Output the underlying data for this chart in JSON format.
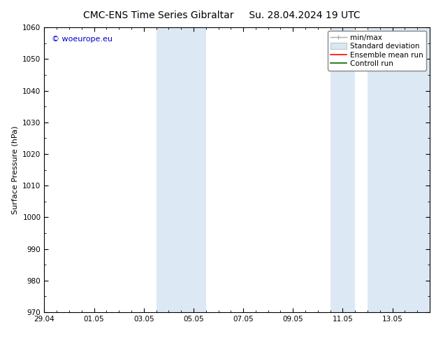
{
  "title_left": "CMC-ENS Time Series Gibraltar",
  "title_right": "Su. 28.04.2024 19 UTC",
  "ylabel": "Surface Pressure (hPa)",
  "ylim": [
    970,
    1060
  ],
  "yticks": [
    970,
    980,
    990,
    1000,
    1010,
    1020,
    1030,
    1040,
    1050,
    1060
  ],
  "xtick_labels": [
    "29.04",
    "01.05",
    "03.05",
    "05.05",
    "07.05",
    "09.05",
    "11.05",
    "13.05"
  ],
  "xtick_positions": [
    0,
    2,
    4,
    6,
    8,
    10,
    12,
    14
  ],
  "xlim": [
    0,
    15.5
  ],
  "shaded_regions": [
    {
      "start": 4.5,
      "end": 6.5
    },
    {
      "start": 11.5,
      "end": 12.5
    },
    {
      "start": 13.0,
      "end": 15.5
    }
  ],
  "watermark_text": "© woeurope.eu",
  "watermark_color": "#0000cc",
  "shade_color": "#dce9f5",
  "shade_alpha": 1.0,
  "bg_color": "#ffffff",
  "title_fontsize": 10,
  "label_fontsize": 8,
  "tick_fontsize": 7.5,
  "legend_fontsize": 7.5
}
